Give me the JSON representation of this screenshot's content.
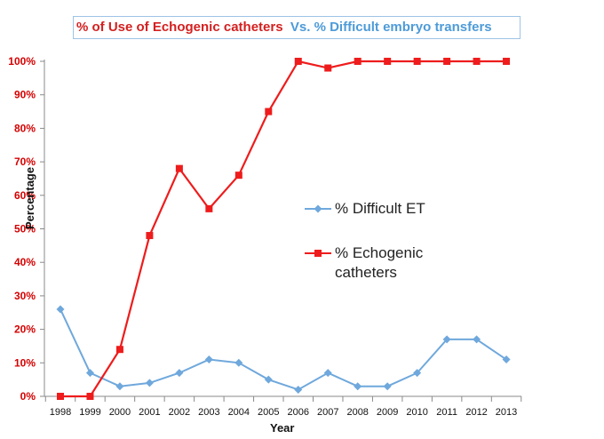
{
  "chart_data": {
    "type": "line",
    "title_part_a": "% of Use of Echogenic catheters",
    "title_part_b": "Vs. % Difficult embryo transfers",
    "xlabel": "Year",
    "ylabel": "Percentage",
    "x": [
      1998,
      1999,
      2000,
      2001,
      2002,
      2003,
      2004,
      2005,
      2006,
      2007,
      2008,
      2009,
      2010,
      2011,
      2012,
      2013
    ],
    "ylim": [
      0,
      100
    ],
    "yticks": [
      "0%",
      "10%",
      "20%",
      "30%",
      "40%",
      "50%",
      "60%",
      "70%",
      "80%",
      "90%",
      "100%"
    ],
    "grid": false,
    "legend_position": "center-right",
    "series": [
      {
        "name": "% Difficult ET",
        "color": "#6fa8dc",
        "marker": "diamond",
        "values": [
          26,
          7,
          3,
          4,
          7,
          11,
          10,
          5,
          2,
          7,
          3,
          3,
          7,
          17,
          17,
          11
        ]
      },
      {
        "name": "% Echogenic catheters",
        "color": "#ee1c1c",
        "marker": "square",
        "values": [
          0,
          0,
          14,
          48,
          68,
          56,
          66,
          85,
          100,
          98,
          100,
          100,
          100,
          100,
          100,
          100
        ]
      }
    ]
  }
}
